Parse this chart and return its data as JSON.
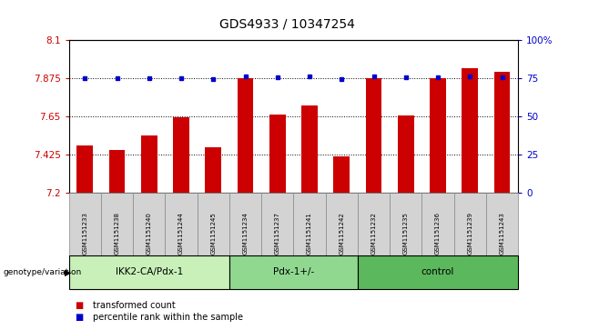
{
  "title": "GDS4933 / 10347254",
  "samples": [
    "GSM1151233",
    "GSM1151238",
    "GSM1151240",
    "GSM1151244",
    "GSM1151245",
    "GSM1151234",
    "GSM1151237",
    "GSM1151241",
    "GSM1151242",
    "GSM1151232",
    "GSM1151235",
    "GSM1151236",
    "GSM1151239",
    "GSM1151243"
  ],
  "red_values": [
    7.48,
    7.455,
    7.54,
    7.645,
    7.47,
    7.875,
    7.66,
    7.715,
    7.415,
    7.875,
    7.655,
    7.875,
    7.93,
    7.91
  ],
  "blue_values": [
    7.875,
    7.872,
    7.876,
    7.873,
    7.869,
    7.884,
    7.879,
    7.882,
    7.867,
    7.882,
    7.878,
    7.879,
    7.884,
    7.881
  ],
  "groups": [
    {
      "label": "IKK2-CA/Pdx-1",
      "start": 0,
      "end": 5,
      "color": "#c8f0b8"
    },
    {
      "label": "Pdx-1+/-",
      "start": 5,
      "end": 9,
      "color": "#90d890"
    },
    {
      "label": "control",
      "start": 9,
      "end": 14,
      "color": "#5cb85c"
    }
  ],
  "y_min": 7.2,
  "y_max": 8.1,
  "y_ticks": [
    7.2,
    7.425,
    7.65,
    7.875,
    8.1
  ],
  "y_tick_labels": [
    "7.2",
    "7.425",
    "7.65",
    "7.875",
    "8.1"
  ],
  "right_ticks": [
    0,
    25,
    50,
    75,
    100
  ],
  "right_tick_labels": [
    "0",
    "25",
    "50",
    "75",
    "100%"
  ],
  "bar_color": "#cc0000",
  "dot_color": "#0000cc",
  "bar_width": 0.5,
  "legend_red": "transformed count",
  "legend_blue": "percentile rank within the sample"
}
